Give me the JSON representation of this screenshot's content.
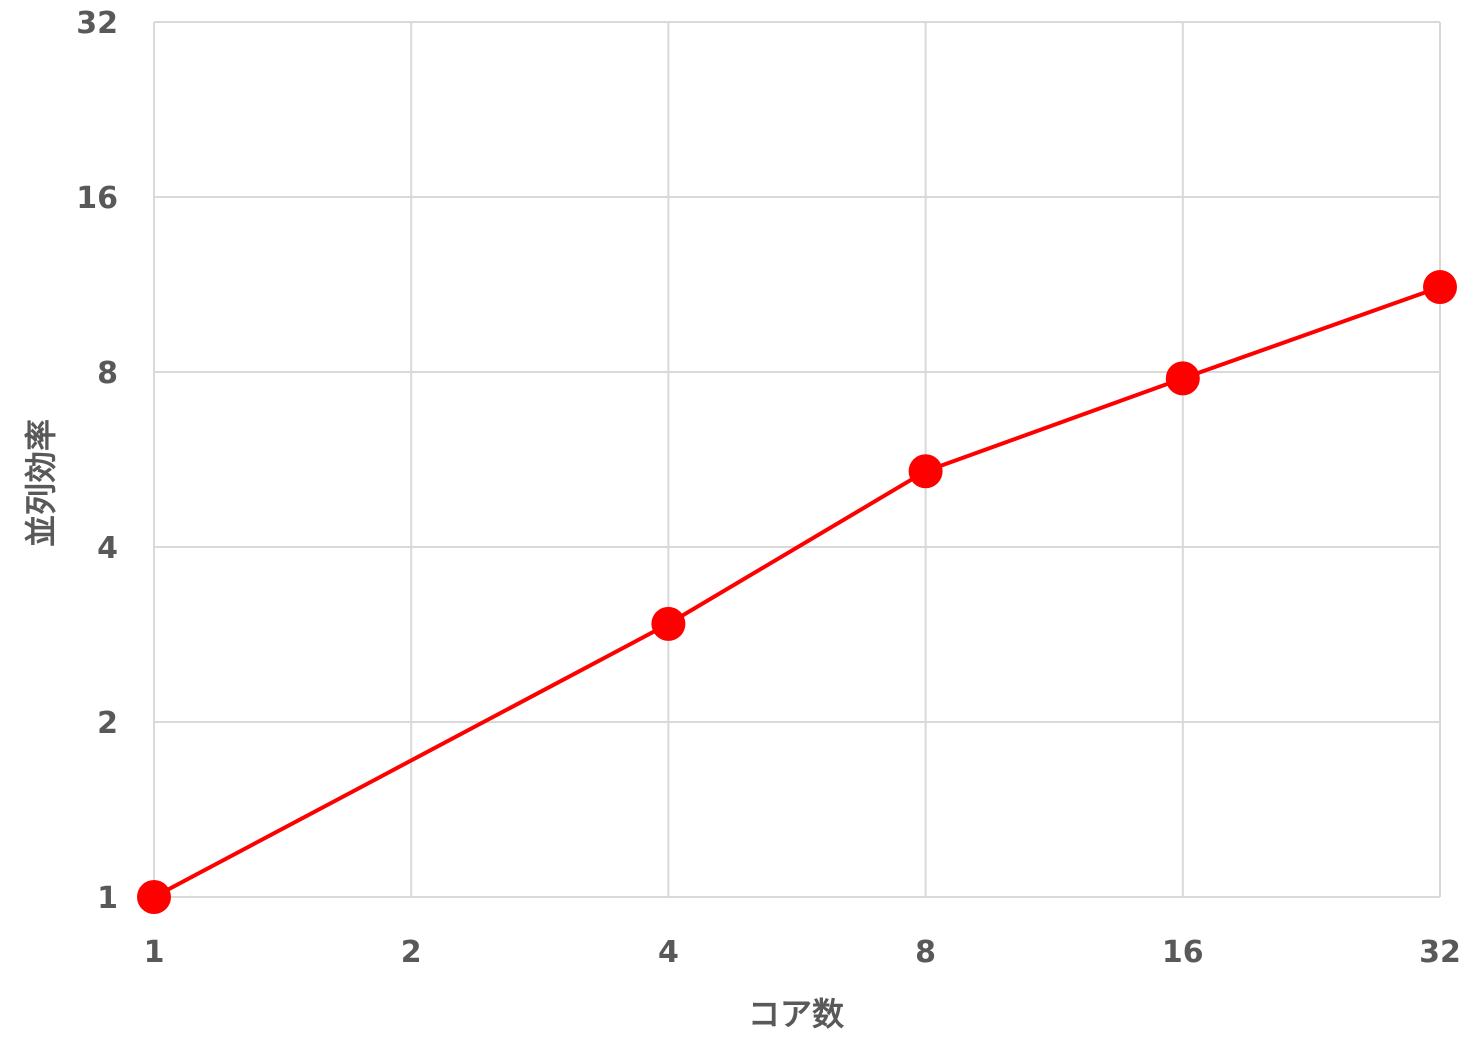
{
  "chart_data": {
    "type": "line",
    "title": "",
    "xlabel": "コア数",
    "ylabel": "並列効率",
    "x_scale": "log2",
    "y_scale": "log2",
    "xlim": [
      1,
      32
    ],
    "ylim": [
      1,
      32
    ],
    "x_ticks": [
      "1",
      "2",
      "4",
      "8",
      "16",
      "32"
    ],
    "y_ticks": [
      "1",
      "2",
      "4",
      "8",
      "16",
      "32"
    ],
    "grid": true,
    "legend": "none",
    "series": [
      {
        "color": "#ff0000",
        "marker": "circle",
        "x": [
          1,
          4,
          8,
          16,
          32
        ],
        "y": [
          1,
          2.95,
          5.4,
          7.8,
          11.2
        ]
      }
    ]
  }
}
